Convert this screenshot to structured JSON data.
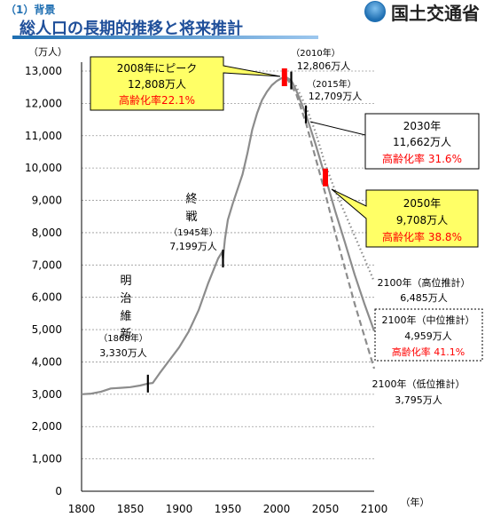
{
  "header": {
    "section": "（1）背景",
    "title": "総人口の長期的推移と将来推計",
    "ministry": "国土交通省"
  },
  "colors": {
    "line": "#8c8c8c",
    "callout_fill": "#ffff66",
    "red": "#ff0000",
    "title_blue": "#1f4f9a"
  },
  "chart_data": {
    "type": "line",
    "ylabel": "（万人）",
    "xlabel": "（年）",
    "ylim": [
      0,
      13000
    ],
    "xlim": [
      1800,
      2100
    ],
    "xticks": [
      "1800",
      "1850",
      "1900",
      "1950",
      "2000",
      "2050",
      "2100"
    ],
    "yticks": [
      "0",
      "1,000",
      "2,000",
      "3,000",
      "4,000",
      "5,000",
      "6,000",
      "7,000",
      "8,000",
      "9,000",
      "10,000",
      "11,000",
      "12,000",
      "13,000"
    ],
    "grid": true,
    "series": [
      {
        "key": "historical",
        "style": "solid",
        "x": [
          1800,
          1810,
          1820,
          1830,
          1840,
          1850,
          1860,
          1868,
          1873,
          1880,
          1890,
          1900,
          1910,
          1920,
          1930,
          1940,
          1944,
          1945,
          1947,
          1950,
          1955,
          1960,
          1965,
          1970,
          1975,
          1980,
          1985,
          1990,
          1995,
          2000,
          2005,
          2008,
          2010
        ],
        "y": [
          3000,
          3020,
          3080,
          3180,
          3200,
          3220,
          3270,
          3330,
          3350,
          3650,
          4050,
          4450,
          4950,
          5600,
          6450,
          7200,
          7400,
          7199,
          7800,
          8400,
          8900,
          9350,
          9800,
          10450,
          11190,
          11700,
          12100,
          12360,
          12560,
          12690,
          12780,
          12808,
          12806
        ]
      },
      {
        "key": "medium",
        "style": "solid",
        "x": [
          2010,
          2015,
          2020,
          2030,
          2040,
          2050,
          2060,
          2070,
          2080,
          2090,
          2100
        ],
        "y": [
          12806,
          12709,
          12410,
          11662,
          10728,
          9708,
          8674,
          7700,
          6700,
          5800,
          4959
        ]
      },
      {
        "key": "high",
        "style": "dotted",
        "x": [
          2010,
          2020,
          2030,
          2040,
          2050,
          2060,
          2070,
          2080,
          2090,
          2100
        ],
        "y": [
          12806,
          12530,
          11900,
          11100,
          10100,
          9300,
          8600,
          7900,
          7200,
          6485
        ]
      },
      {
        "key": "low",
        "style": "dashed",
        "x": [
          2010,
          2020,
          2030,
          2040,
          2050,
          2060,
          2070,
          2080,
          2090,
          2100
        ],
        "y": [
          12806,
          12300,
          11400,
          10300,
          9200,
          8000,
          6900,
          5800,
          4800,
          3795
        ]
      }
    ],
    "markers": [
      {
        "x": 1868,
        "y": 3330,
        "color": "black"
      },
      {
        "x": 1945,
        "y": 7199,
        "color": "black"
      },
      {
        "x": 2008,
        "y": 12808,
        "color": "red"
      },
      {
        "x": 2015,
        "y": 12709,
        "color": "black"
      },
      {
        "x": 2030,
        "y": 11662,
        "color": "black"
      },
      {
        "x": 2050,
        "y": 9708,
        "color": "red"
      }
    ],
    "annotations": {
      "meiji_vertical": [
        "明",
        "治",
        "維",
        "新"
      ],
      "meiji_year": "（1868年）",
      "meiji_value": "3,330万人",
      "war_vertical": [
        "終",
        "戦"
      ],
      "war_year": "（1945年）",
      "war_value": "7,199万人",
      "y2010_year": "（2010年）",
      "y2010_value": "12,806万人",
      "y2015_year": "（2015年）",
      "y2015_value": "12,709万人",
      "peak_l1": "2008年にピーク",
      "peak_l2": "12,808万人",
      "peak_l3": "高齢化率22.1%",
      "c2030_l1": "2030年",
      "c2030_l2": "11,662万人",
      "c2030_l3": "高齢化率 31.6%",
      "c2050_l1": "2050年",
      "c2050_l2": "9,708万人",
      "c2050_l3": "高齢化率 38.8%",
      "high_l1": "2100年（高位推計）",
      "high_l2": "6,485万人",
      "med_l1": "2100年（中位推計）",
      "med_l2": "4,959万人",
      "med_l3": "高齢化率 41.1%",
      "low_l1": "2100年（低位推計）",
      "low_l2": "3,795万人"
    }
  }
}
